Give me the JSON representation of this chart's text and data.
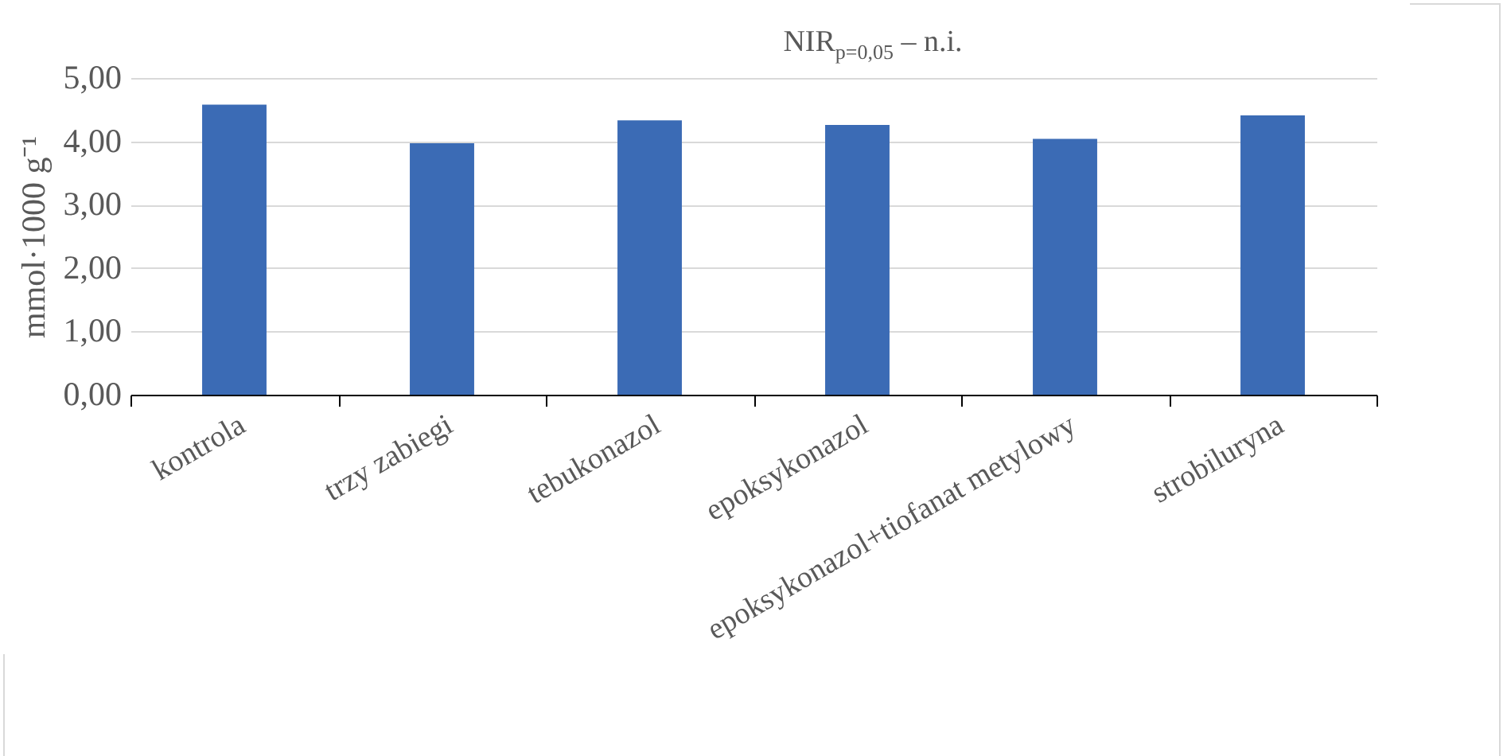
{
  "chart_data": {
    "type": "bar",
    "ylabel": "mmol·1000 g⁻¹",
    "categories": [
      "kontrola",
      "trzy zabiegi",
      "tebukonazol",
      "epoksykonazol",
      "epoksykonazol+tiofanat metylowy",
      "strobiluryna"
    ],
    "values": [
      4.58,
      3.97,
      4.33,
      4.26,
      4.04,
      4.41
    ],
    "color": "#3b6bb5",
    "ylim": [
      0,
      5
    ],
    "yticks": [
      {
        "value": 0,
        "label": "0,00"
      },
      {
        "value": 1,
        "label": "1,00"
      },
      {
        "value": 2,
        "label": "2,00"
      },
      {
        "value": 3,
        "label": "3,00"
      },
      {
        "value": 4,
        "label": "4,00"
      },
      {
        "value": 5,
        "label": "5,00"
      }
    ],
    "grid": "y",
    "annotations": [
      "NIR$_{p=0,05}$ – n.i."
    ]
  }
}
